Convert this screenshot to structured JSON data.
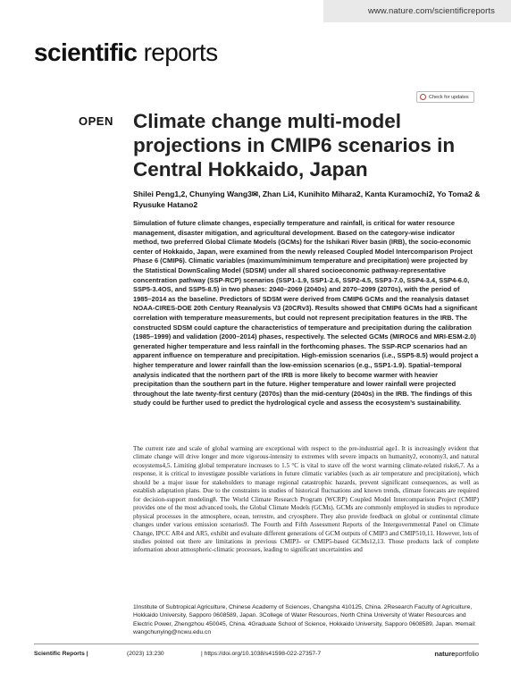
{
  "url": "www.nature.com/scientificreports",
  "brand": {
    "part1": "scientific",
    "part2": " reports"
  },
  "check_updates": "Check for updates",
  "open_label": "OPEN",
  "title": "Climate change multi-model projections in CMIP6 scenarios in Central Hokkaido, Japan",
  "authors": {
    "line1": "Shilei Peng1,2, Chunying Wang3✉, Zhan Li4, Kunihito Mihara2, Kanta Kuramochi2, Yo Toma2 &",
    "line2": "Ryusuke Hatano2"
  },
  "abstract": "Simulation of future climate changes, especially temperature and rainfall, is critical for water resource management, disaster mitigation, and agricultural development. Based on the category-wise indicator method, two preferred Global Climate Models (GCMs) for the Ishikari River basin (IRB), the socio-economic center of Hokkaido, Japan, were examined from the newly released Coupled Model Intercomparison Project Phase 6 (CMIP6). Climatic variables (maximum/minimum temperature and precipitation) were projected by the Statistical DownScaling Model (SDSM) under all shared socioeconomic pathway-representative concentration pathway (SSP-RCP) scenarios (SSP1-1.9, SSP1-2.6, SSP2-4.5, SSP3-7.0, SSP4-3.4, SSP4-6.0, SSP5-3.4OS, and SSP5-8.5) in two phases: 2040–2069 (2040s) and 2070–2099 (2070s), with the period of 1985–2014 as the baseline. Predictors of SDSM were derived from CMIP6 GCMs and the reanalysis dataset NOAA-CIRES-DOE 20th Century Reanalysis V3 (20CRv3). Results showed that CMIP6 GCMs had a significant correlation with temperature measurements, but could not represent precipitation features in the IRB. The constructed SDSM could capture the characteristics of temperature and precipitation during the calibration (1985–1999) and validation (2000–2014) phases, respectively. The selected GCMs (MIROC6 and MRI-ESM-2.0) generated higher temperature and less rainfall in the forthcoming phases. The SSP-RCP scenarios had an apparent influence on temperature and precipitation. High-emission scenarios (i.e., SSP5-8.5) would project a higher temperature and lower rainfall than the low-emission scenarios (e.g., SSP1-1.9). Spatial–temporal analysis indicated that the northern part of the IRB is more likely to become warmer with heavier precipitation than the southern part in the future. Higher temperature and lower rainfall were projected throughout the late twenty-first century (2070s) than the mid-century (2040s) in the IRB. The findings of this study could be further used to predict the hydrological cycle and assess the ecosystem’s sustainability.",
  "body": "The current rate and scale of global warming are exceptional with respect to the pre-industrial age1. It is increasingly evident that climate change will drive longer and more vigorous-intensity to extremes with severe impacts on humanity2, economy3, and natural ecosystems4,5. Limiting global temperature increases to 1.5 °C is vital to stave off the worst warming climate-related risks6,7. As a response, it is critical to investigate possible variations in future climatic variables (such as air temperature and precipitation), which should be a major issue for stakeholders to manage regional catastrophic hazards, prevent significant consequences, as well as establish adaptation plans. Due to the constraints in studies of historical fluctuations and known trends, climate forecasts are required for decision-support modeling8. The World Climate Research Program (WCRP) Coupled Model Intercomparison Project (CMIP) provides one of the most advanced tools, the Global Climate Models (GCMs). GCMs are commonly employed in studies to reproduce physical processes in the atmosphere, ocean, terrestre, and cryosphere. They also provide feedback on global or continental climate changes under various emission scenarios9. The Fourth and Fifth Assessment Reports of the Intergovernmental Panel on Climate Change, IPCC AR4 and AR5, exhibit and evaluate different generations of GCM outputs of CMIP3 and CMIP510,11. However, lots of studies pointed out there are limitations in previous CMIP3- or CMIP5-based GCMs12,13. Those products lack of complete information about atmospheric-climatic processes, leading to significant uncertainties and",
  "affiliations": "1Institute of Subtropical Agriculture, Chinese Academy of Sciences, Changsha 410125, China. 2Research Faculty of Agriculture, Hokkaido University, Sapporo 0608589, Japan. 3College of Water Resources, North China University of Water Resources and Electric Power, Zhengzhou 450045, China. 4Graduate School of Science, Hokkaido University, Sapporo 0608589, Japan. ✉email: wangchunying@ncwu.edu.cn",
  "footer": {
    "journal": "Scientific Reports |",
    "citation": "(2023) 13:230",
    "doi": "| https://doi.org/10.1038/s41598-022-27357-7",
    "logo_a": "nature",
    "logo_b": "portfolio"
  }
}
